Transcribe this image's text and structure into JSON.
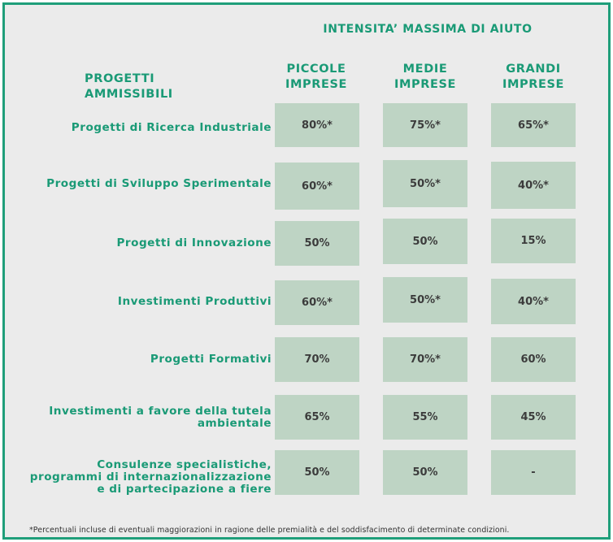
{
  "header": {
    "title": "INTENSITA’ MASSIMA DI AIUTO",
    "projects_label": "PROGETTI AMMISSIBILI",
    "columns": [
      {
        "line1": "PICCOLE",
        "line2": "IMPRESE"
      },
      {
        "line1": "MEDIE",
        "line2": "IMPRESE"
      },
      {
        "line1": "GRANDI",
        "line2": "IMPRESE"
      }
    ]
  },
  "rows": [
    {
      "lines": [
        "Progetti di Ricerca Industriale"
      ],
      "values": [
        "80%*",
        "75%*",
        "65%*"
      ]
    },
    {
      "lines": [
        "Progetti di Sviluppo Sperimentale"
      ],
      "values": [
        "60%*",
        "50%*",
        "40%*"
      ]
    },
    {
      "lines": [
        "Progetti di Innovazione"
      ],
      "values": [
        "50%",
        "50%",
        "15%"
      ]
    },
    {
      "lines": [
        "Investimenti Produttivi"
      ],
      "values": [
        "60%*",
        "50%*",
        "40%*"
      ]
    },
    {
      "lines": [
        "Progetti Formativi"
      ],
      "values": [
        "70%",
        "70%*",
        "60%"
      ]
    },
    {
      "lines": [
        "Investimenti a favore della tutela",
        "ambientale"
      ],
      "values": [
        "65%",
        "55%",
        "45%"
      ]
    },
    {
      "lines": [
        "Consulenze specialistiche,",
        "programmi di internazionalizzazione",
        "e di partecipazione a fiere"
      ],
      "values": [
        "50%",
        "50%",
        "-"
      ]
    }
  ],
  "footnote": "*Percentuali incluse di eventuali maggiorazioni in ragione delle premialità e del soddisfacimento di determinate condizioni."
}
